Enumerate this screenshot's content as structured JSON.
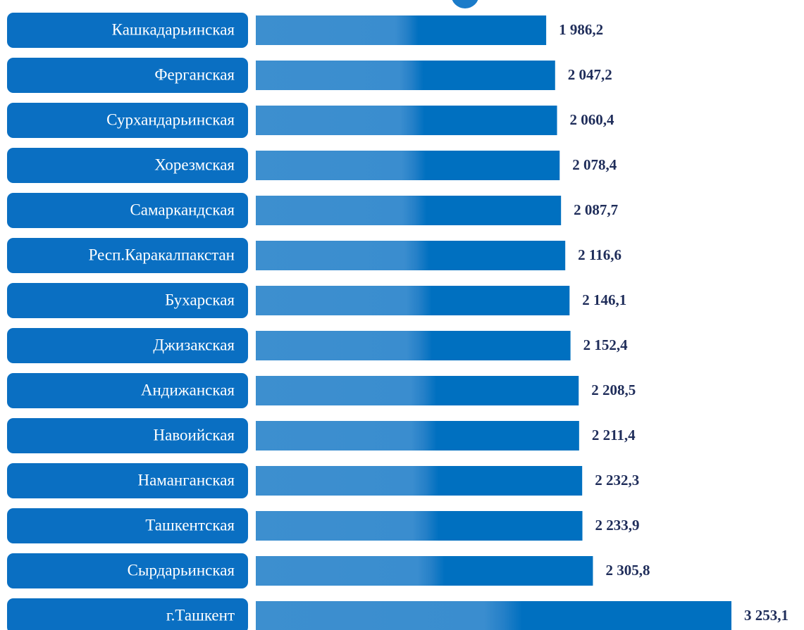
{
  "chart_data": {
    "type": "bar",
    "categories": [
      "Кашкадарьинская",
      "Ферганская",
      "Сурхандарьинская",
      "Хорезмская",
      "Самаркандская",
      "Респ.Каракалпакстан",
      "Бухарская",
      "Джизакская",
      "Андижанская",
      "Навоийская",
      "Наманганская",
      "Ташкентская",
      "Сырдарьинская",
      "г.Ташкент"
    ],
    "values": [
      1986.2,
      2047.2,
      2060.4,
      2078.4,
      2087.7,
      2116.6,
      2146.1,
      2152.4,
      2208.5,
      2211.4,
      2232.3,
      2233.9,
      2305.8,
      3253.1
    ],
    "value_labels": [
      "1 986,2",
      "2 047,2",
      "2 060,4",
      "2 078,4",
      "2 087,7",
      "2 116,6",
      "2 146,1",
      "2 152,4",
      "2 208,5",
      "2 211,4",
      "2 232,3",
      "2 233,9",
      "2 305,8",
      "3 253,1"
    ],
    "color": "#0070c0"
  }
}
